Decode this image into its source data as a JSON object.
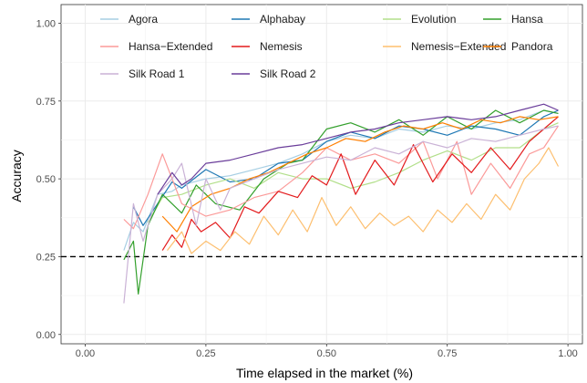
{
  "chart_data": {
    "type": "line",
    "xlabel": "Time elapsed in the market (%)",
    "ylabel": "Accuracy",
    "xlim": [
      -0.05,
      1.03
    ],
    "ylim": [
      -0.03,
      1.06
    ],
    "x_ticks": [
      0.0,
      0.25,
      0.5,
      0.75,
      1.0
    ],
    "x_tick_labels": [
      "0.00",
      "0.25",
      "0.50",
      "0.75",
      "1.00"
    ],
    "y_ticks": [
      0.0,
      0.25,
      0.5,
      0.75,
      1.0
    ],
    "y_tick_labels": [
      "0.00",
      "0.25",
      "0.50",
      "0.75",
      "1.00"
    ],
    "grid": true,
    "legend_position": "top, inside plot, 4 columns",
    "reference_line": {
      "y": 0.25,
      "style": "dashed",
      "color": "#000000"
    },
    "series": [
      {
        "name": "Agora",
        "color": "#a6cee3",
        "x": [
          0.08,
          0.1,
          0.12,
          0.15,
          0.18,
          0.2,
          0.25,
          0.3,
          0.35,
          0.4,
          0.45,
          0.5,
          0.55,
          0.6,
          0.65,
          0.7,
          0.75,
          0.8,
          0.85,
          0.9,
          0.95,
          0.98
        ],
        "y": [
          0.27,
          0.36,
          0.33,
          0.45,
          0.46,
          0.48,
          0.5,
          0.51,
          0.53,
          0.55,
          0.58,
          0.62,
          0.64,
          0.63,
          0.66,
          0.65,
          0.67,
          0.66,
          0.68,
          0.69,
          0.72,
          0.71
        ]
      },
      {
        "name": "Alphabay",
        "color": "#1f78b4",
        "x": [
          0.1,
          0.12,
          0.15,
          0.18,
          0.2,
          0.25,
          0.3,
          0.35,
          0.4,
          0.45,
          0.5,
          0.55,
          0.6,
          0.65,
          0.7,
          0.75,
          0.8,
          0.85,
          0.9,
          0.95,
          0.98
        ],
        "y": [
          0.41,
          0.35,
          0.42,
          0.49,
          0.47,
          0.53,
          0.49,
          0.5,
          0.55,
          0.56,
          0.62,
          0.65,
          0.63,
          0.67,
          0.66,
          0.64,
          0.67,
          0.66,
          0.64,
          0.7,
          0.72
        ]
      },
      {
        "name": "Evolution",
        "color": "#b2df8a",
        "x": [
          0.13,
          0.16,
          0.2,
          0.25,
          0.3,
          0.35,
          0.4,
          0.45,
          0.5,
          0.55,
          0.6,
          0.65,
          0.7,
          0.75,
          0.8,
          0.85,
          0.9,
          0.95,
          0.98
        ],
        "y": [
          0.36,
          0.44,
          0.45,
          0.48,
          0.5,
          0.47,
          0.52,
          0.5,
          0.5,
          0.47,
          0.49,
          0.52,
          0.56,
          0.59,
          0.56,
          0.6,
          0.6,
          0.66,
          0.68
        ]
      },
      {
        "name": "Hansa",
        "color": "#33a02c",
        "x": [
          0.08,
          0.1,
          0.11,
          0.13,
          0.16,
          0.2,
          0.23,
          0.27,
          0.32,
          0.37,
          0.42,
          0.45,
          0.5,
          0.55,
          0.6,
          0.65,
          0.7,
          0.75,
          0.8,
          0.85,
          0.9,
          0.95,
          0.98
        ],
        "y": [
          0.24,
          0.3,
          0.13,
          0.35,
          0.45,
          0.39,
          0.48,
          0.42,
          0.4,
          0.5,
          0.55,
          0.56,
          0.66,
          0.68,
          0.65,
          0.69,
          0.64,
          0.7,
          0.66,
          0.72,
          0.68,
          0.72,
          0.71
        ]
      },
      {
        "name": "Hansa−Extended",
        "color": "#fb9a99",
        "x": [
          0.08,
          0.1,
          0.13,
          0.16,
          0.2,
          0.25,
          0.3,
          0.35,
          0.4,
          0.45,
          0.5,
          0.55,
          0.6,
          0.65,
          0.7,
          0.73,
          0.77,
          0.8,
          0.84,
          0.88,
          0.92,
          0.95,
          0.98
        ],
        "y": [
          0.37,
          0.34,
          0.45,
          0.58,
          0.42,
          0.38,
          0.4,
          0.44,
          0.46,
          0.52,
          0.6,
          0.56,
          0.58,
          0.55,
          0.62,
          0.5,
          0.62,
          0.45,
          0.55,
          0.47,
          0.58,
          0.6,
          0.67
        ]
      },
      {
        "name": "Nemesis",
        "color": "#e31a1c",
        "x": [
          0.16,
          0.18,
          0.2,
          0.22,
          0.24,
          0.27,
          0.3,
          0.33,
          0.36,
          0.4,
          0.44,
          0.47,
          0.5,
          0.53,
          0.56,
          0.6,
          0.64,
          0.68,
          0.72,
          0.76,
          0.8,
          0.84,
          0.88,
          0.92,
          0.95,
          0.98
        ],
        "y": [
          0.27,
          0.32,
          0.28,
          0.37,
          0.33,
          0.36,
          0.31,
          0.41,
          0.39,
          0.46,
          0.44,
          0.51,
          0.48,
          0.58,
          0.45,
          0.56,
          0.48,
          0.61,
          0.49,
          0.58,
          0.52,
          0.6,
          0.53,
          0.62,
          0.66,
          0.7
        ]
      },
      {
        "name": "Nemesis−Extended",
        "color": "#fdbf6f",
        "x": [
          0.17,
          0.2,
          0.22,
          0.25,
          0.28,
          0.31,
          0.34,
          0.37,
          0.4,
          0.43,
          0.46,
          0.49,
          0.52,
          0.55,
          0.58,
          0.61,
          0.64,
          0.67,
          0.7,
          0.73,
          0.76,
          0.79,
          0.82,
          0.85,
          0.88,
          0.91,
          0.94,
          0.96,
          0.98
        ],
        "y": [
          0.27,
          0.33,
          0.26,
          0.3,
          0.27,
          0.33,
          0.29,
          0.38,
          0.32,
          0.4,
          0.33,
          0.44,
          0.35,
          0.41,
          0.34,
          0.39,
          0.35,
          0.38,
          0.33,
          0.4,
          0.36,
          0.42,
          0.37,
          0.45,
          0.4,
          0.5,
          0.55,
          0.6,
          0.54
        ]
      },
      {
        "name": "Pandora",
        "color": "#ff7f00",
        "x": [
          0.16,
          0.19,
          0.22,
          0.26,
          0.3,
          0.34,
          0.38,
          0.42,
          0.46,
          0.5,
          0.54,
          0.58,
          0.62,
          0.66,
          0.7,
          0.74,
          0.78,
          0.82,
          0.86,
          0.9,
          0.94,
          0.98
        ],
        "y": [
          0.38,
          0.33,
          0.41,
          0.45,
          0.47,
          0.5,
          0.52,
          0.55,
          0.58,
          0.6,
          0.63,
          0.62,
          0.65,
          0.67,
          0.66,
          0.68,
          0.66,
          0.69,
          0.68,
          0.7,
          0.69,
          0.7
        ]
      },
      {
        "name": "Silk Road 1",
        "color": "#cab2d6",
        "x": [
          0.08,
          0.1,
          0.12,
          0.15,
          0.18,
          0.2,
          0.23,
          0.25,
          0.28,
          0.3,
          0.35,
          0.4,
          0.45,
          0.5,
          0.55,
          0.6,
          0.65,
          0.7,
          0.75,
          0.8,
          0.85,
          0.9,
          0.95,
          0.98
        ],
        "y": [
          0.1,
          0.42,
          0.3,
          0.45,
          0.5,
          0.55,
          0.35,
          0.5,
          0.4,
          0.47,
          0.5,
          0.53,
          0.55,
          0.57,
          0.56,
          0.6,
          0.58,
          0.62,
          0.6,
          0.63,
          0.62,
          0.64,
          0.66,
          0.67
        ]
      },
      {
        "name": "Silk Road 2",
        "color": "#6a3d9a",
        "x": [
          0.15,
          0.18,
          0.2,
          0.22,
          0.25,
          0.3,
          0.35,
          0.4,
          0.45,
          0.5,
          0.55,
          0.6,
          0.65,
          0.7,
          0.75,
          0.8,
          0.85,
          0.9,
          0.95,
          0.98
        ],
        "y": [
          0.45,
          0.52,
          0.48,
          0.5,
          0.55,
          0.56,
          0.58,
          0.6,
          0.61,
          0.63,
          0.65,
          0.66,
          0.68,
          0.69,
          0.7,
          0.69,
          0.7,
          0.72,
          0.74,
          0.72
        ]
      }
    ]
  }
}
